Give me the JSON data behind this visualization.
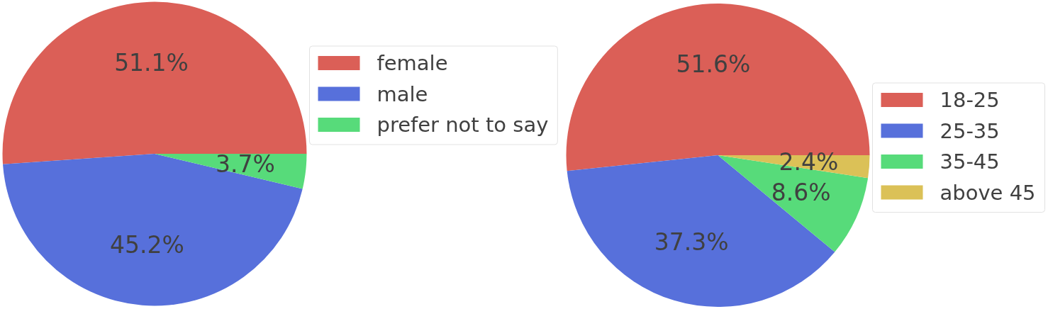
{
  "chart_data": [
    {
      "type": "pie",
      "categories": [
        "female",
        "male",
        "prefer not to say"
      ],
      "values": [
        51.1,
        45.2,
        3.7
      ],
      "value_labels": [
        "51.1%",
        "45.2%",
        "3.7%"
      ],
      "colors": [
        "#db5f57",
        "#5770db",
        "#57db7a"
      ],
      "legend": "right"
    },
    {
      "type": "pie",
      "categories": [
        "18-25",
        "25-35",
        "35-45",
        "above 45"
      ],
      "values": [
        51.6,
        37.3,
        8.6,
        2.4
      ],
      "value_labels": [
        "51.6%",
        "37.3%",
        "8.6%",
        "2.4%"
      ],
      "colors": [
        "#db5f57",
        "#5770db",
        "#57db7a",
        "#dbc157"
      ],
      "legend": "right"
    }
  ]
}
